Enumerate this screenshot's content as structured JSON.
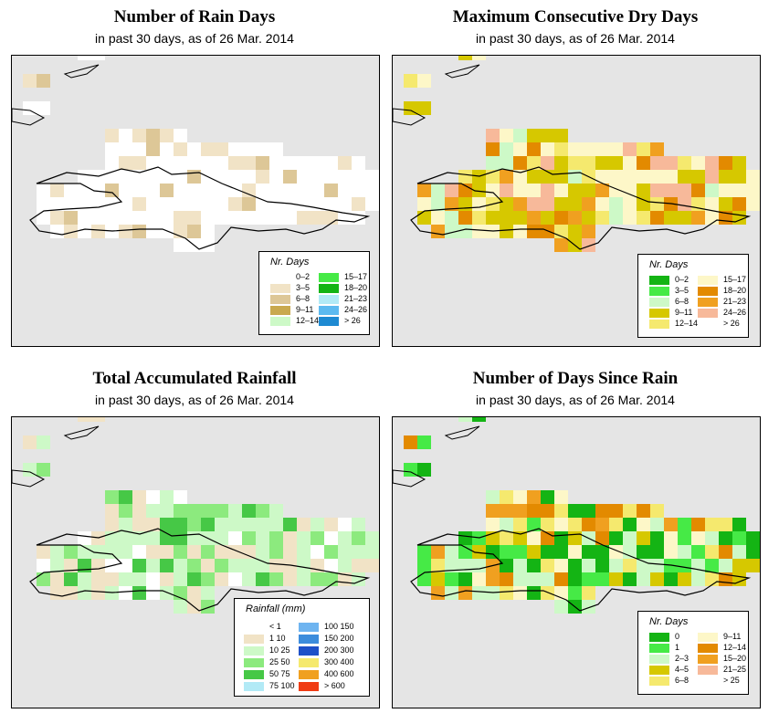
{
  "panels": [
    {
      "title": "Number of Rain Days",
      "subtitle": "in past 30 days, as of  26 Mar. 2014",
      "legend": {
        "title": "Nr. Days",
        "items": [
          {
            "label": "0–2",
            "color": "#ffffff"
          },
          {
            "label": "3–5",
            "color": "#f1e3c6"
          },
          {
            "label": "6–8",
            "color": "#ddc797"
          },
          {
            "label": "9–11",
            "color": "#c9a94e"
          },
          {
            "label": "12–14",
            "color": "#cdf9c7"
          },
          {
            "label": "15–17",
            "color": "#46ea46"
          },
          {
            "label": "18–20",
            "color": "#14b414"
          },
          {
            "label": "21–23",
            "color": "#b2eaf6"
          },
          {
            "label": "24–26",
            "color": "#5cbaf0"
          },
          {
            "label": "> 26",
            "color": "#1e8ad2"
          }
        ]
      }
    },
    {
      "title": "Maximum Consecutive Dry Days",
      "subtitle": "in past 30 days, as of  26 Mar. 2014",
      "legend": {
        "title": "Nr. Days",
        "items": [
          {
            "label": "0–2",
            "color": "#14b414"
          },
          {
            "label": "3–5",
            "color": "#46ea46"
          },
          {
            "label": "6–8",
            "color": "#cdf9c7"
          },
          {
            "label": "9–11",
            "color": "#d6c800"
          },
          {
            "label": "12–14",
            "color": "#f5e96e"
          },
          {
            "label": "15–17",
            "color": "#fdf7c8"
          },
          {
            "label": "18–20",
            "color": "#e38a00"
          },
          {
            "label": "21–23",
            "color": "#f0a020"
          },
          {
            "label": "24–26",
            "color": "#f7b99a"
          },
          {
            "label": "> 26",
            "color": "#ffffff"
          }
        ]
      }
    },
    {
      "title": "Total Accumulated Rainfall",
      "subtitle": "in past 30 days, as of  26 Mar. 2014",
      "legend": {
        "title": "Rainfall (mm)",
        "items": [
          {
            "label": "< 1",
            "color": "#ffffff"
          },
          {
            "label": "1   10",
            "color": "#f1e3c6"
          },
          {
            "label": "10   25",
            "color": "#cdf9c7"
          },
          {
            "label": "25   50",
            "color": "#8cea7e"
          },
          {
            "label": "50   75",
            "color": "#46c846"
          },
          {
            "label": "75   100",
            "color": "#b2eaf6"
          },
          {
            "label": "100   150",
            "color": "#6eb4f0"
          },
          {
            "label": "150   200",
            "color": "#3c8cdc"
          },
          {
            "label": "200   300",
            "color": "#1e50c8"
          },
          {
            "label": "300   400",
            "color": "#f5e96e"
          },
          {
            "label": "400   600",
            "color": "#f0a020"
          },
          {
            "label": "> 600",
            "color": "#f03c14"
          }
        ]
      }
    },
    {
      "title": "Number of Days Since Rain",
      "subtitle": "in past 30 days, as of  26 Mar. 2014",
      "legend": {
        "title": "Nr. Days",
        "items": [
          {
            "label": "0",
            "color": "#14b414"
          },
          {
            "label": "1",
            "color": "#46ea46"
          },
          {
            "label": "2–3",
            "color": "#cdf9c7"
          },
          {
            "label": "4–5",
            "color": "#d6c800"
          },
          {
            "label": "6–8",
            "color": "#f5e96e"
          },
          {
            "label": "9–11",
            "color": "#fdf7c8"
          },
          {
            "label": "12–14",
            "color": "#e38a00"
          },
          {
            "label": "15–20",
            "color": "#f0a020"
          },
          {
            "label": "21–25",
            "color": "#f7b99a"
          },
          {
            "label": "> 25",
            "color": "#ffffff"
          }
        ]
      }
    }
  ]
}
